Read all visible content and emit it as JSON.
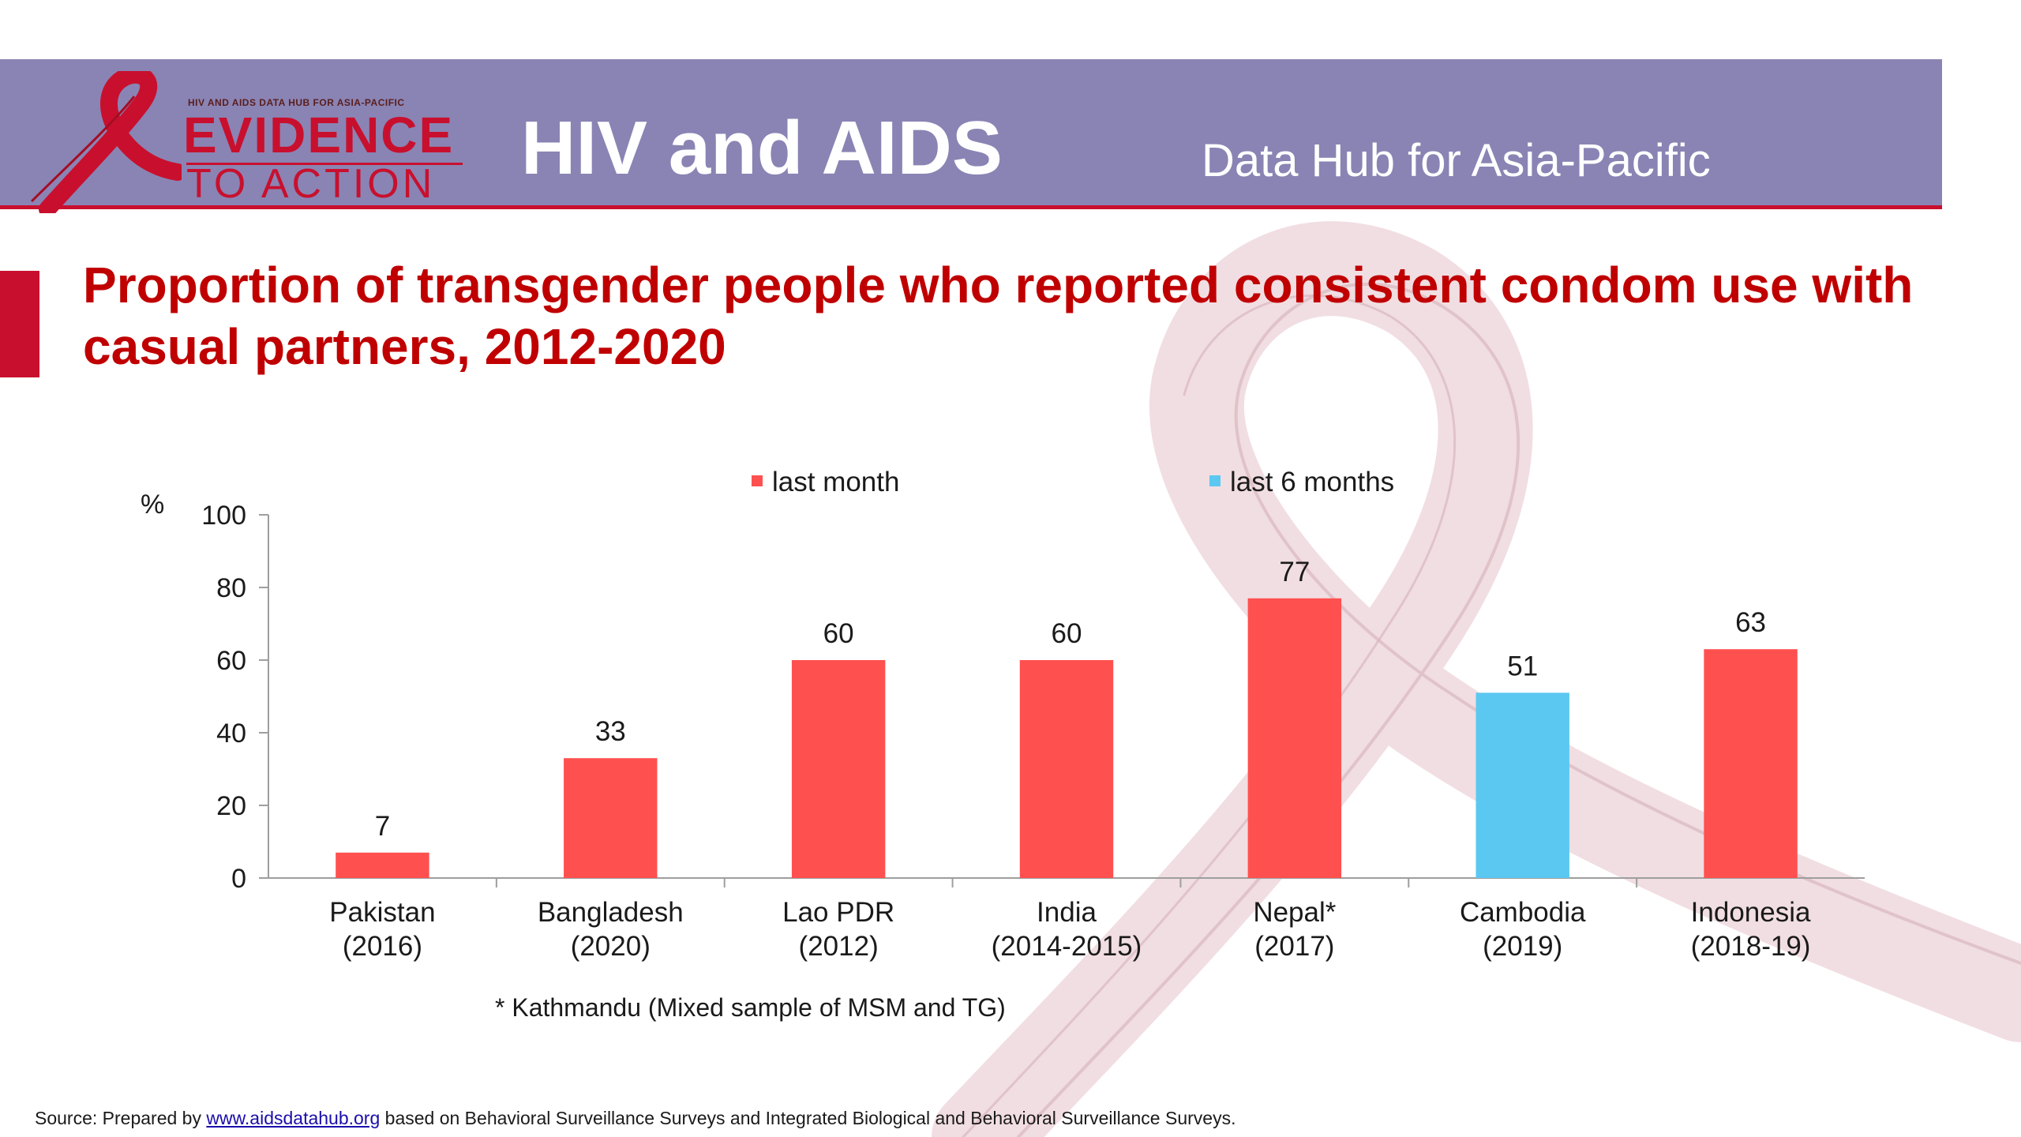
{
  "header": {
    "logo_small_text": "HIV AND AIDS DATA HUB FOR ASIA-PACIFIC",
    "logo_line1": "EVIDENCE",
    "logo_line2": "TO ACTION",
    "title": "HIV and AIDS",
    "subtitle": "Data Hub for Asia-Pacific"
  },
  "slide": {
    "title": "Proportion of transgender people who reported consistent condom use with casual partners, 2012-2020",
    "footnote": "*  Kathmandu (Mixed sample of MSM and TG)",
    "source_prefix": "Source: Prepared by ",
    "source_link": "www.aidsdatahub.org",
    "source_suffix": " based on Behavioral Surveillance Surveys and Integrated Biological and Behavioral Surveillance Surveys."
  },
  "colors": {
    "header_bg": "#8a84b4",
    "brand_red": "#c8102e",
    "title_red": "#c00000",
    "bar_last_month": "#ff5050",
    "bar_last_6_months": "#5bc8f2"
  },
  "chart_data": {
    "type": "bar",
    "title": "",
    "ylabel": "%",
    "xlabel": "",
    "ylim": [
      0,
      100
    ],
    "yticks": [
      0,
      20,
      40,
      60,
      80,
      100
    ],
    "categories": [
      [
        "Pakistan",
        "(2016)"
      ],
      [
        "Bangladesh",
        "(2020)"
      ],
      [
        "Lao PDR",
        "(2012)"
      ],
      [
        "India",
        "(2014-2015)"
      ],
      [
        "Nepal*",
        "(2017)"
      ],
      [
        "Cambodia",
        "(2019)"
      ],
      [
        "Indonesia",
        "(2018-19)"
      ]
    ],
    "series": [
      {
        "name": "last month",
        "color": "#ff5050",
        "values": [
          7,
          33,
          60,
          60,
          77,
          null,
          63
        ]
      },
      {
        "name": "last 6 months",
        "color": "#5bc8f2",
        "values": [
          null,
          null,
          null,
          null,
          null,
          51,
          null
        ]
      }
    ],
    "data_labels": [
      7,
      33,
      60,
      60,
      77,
      51,
      63
    ],
    "legend_position": "top",
    "grid": false
  }
}
